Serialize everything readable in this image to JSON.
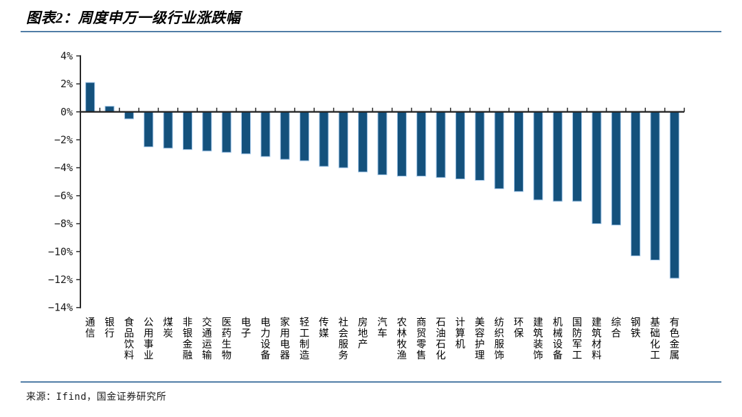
{
  "header": {
    "title": "图表2：周度申万一级行业涨跌幅"
  },
  "footer": {
    "source": "来源：Ifind，国金证券研究所"
  },
  "accent_line_color": "#4f7ca5",
  "chart_data": {
    "type": "bar",
    "title": "周度申万一级行业涨跌幅",
    "unit": "%",
    "categories": [
      "通信",
      "银行",
      "食品饮料",
      "公用事业",
      "煤炭",
      "非银金融",
      "交通运输",
      "医药生物",
      "电子",
      "电力设备",
      "家用电器",
      "轻工制造",
      "传媒",
      "社会服务",
      "房地产",
      "汽车",
      "农林牧渔",
      "商贸零售",
      "石油石化",
      "计算机",
      "美容护理",
      "纺织服饰",
      "环保",
      "建筑装饰",
      "机械设备",
      "国防军工",
      "建筑材料",
      "综合",
      "钢铁",
      "基础化工",
      "有色金属"
    ],
    "values": [
      2.1,
      0.4,
      -0.5,
      -2.5,
      -2.6,
      -2.7,
      -2.8,
      -2.9,
      -3.0,
      -3.2,
      -3.4,
      -3.5,
      -3.9,
      -4.0,
      -4.3,
      -4.5,
      -4.6,
      -4.6,
      -4.7,
      -4.8,
      -4.9,
      -5.5,
      -5.7,
      -6.3,
      -6.4,
      -6.4,
      -8.0,
      -8.1,
      -10.3,
      -10.6,
      -11.9
    ],
    "ylim": [
      -14,
      4
    ],
    "ytick_step": 2,
    "ytick_labels": [
      "4%",
      "2%",
      "0%",
      "−2%",
      "−4%",
      "−6%",
      "−8%",
      "−10%",
      "−12%",
      "−14%"
    ],
    "grid": false,
    "legend_position": "none",
    "bar_color": "#14517c",
    "bar_edge_color": "#9dc3e6",
    "axis_color": "#262626",
    "tick_label_color": "#1a1a1a"
  }
}
